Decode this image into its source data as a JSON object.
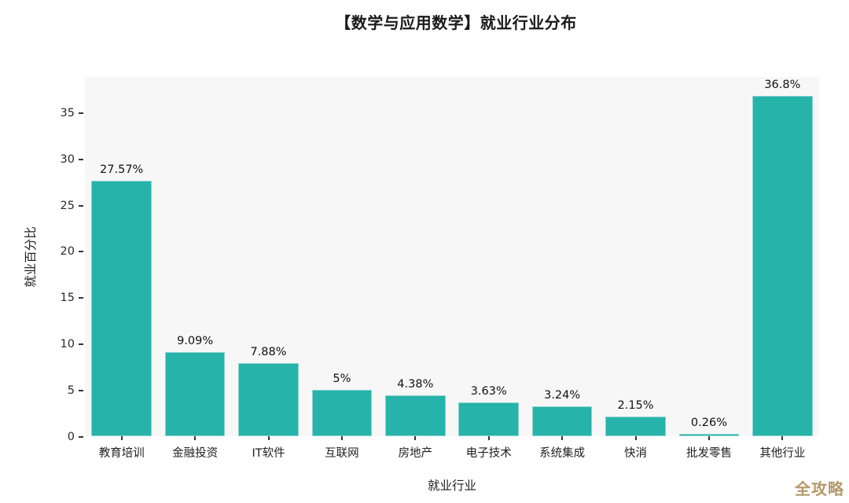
{
  "title": "【数学与应用数学】就业行业分布",
  "watermark_text": "全攻略",
  "colors": {
    "bar": "#26b3aa",
    "bar_border": "#8bd4ce",
    "plot_background": "#f7f7f7",
    "page_background": "#ffffff",
    "text": "#1f1f1f",
    "watermark": "#b5996b"
  },
  "chart_data": {
    "type": "bar",
    "title": "【数学与应用数学】就业行业分布",
    "xlabel": "就业行业",
    "ylabel": "就业百分比",
    "categories": [
      "教育培训",
      "金融投资",
      "IT软件",
      "互联网",
      "房地产",
      "电子技术",
      "系统集成",
      "快消",
      "批发零售",
      "其他行业"
    ],
    "values": [
      27.57,
      9.09,
      7.88,
      5,
      4.38,
      3.63,
      3.24,
      2.15,
      0.26,
      36.8
    ],
    "value_labels": [
      "27.57%",
      "9.09%",
      "7.88%",
      "5%",
      "4.38%",
      "3.63%",
      "3.24%",
      "2.15%",
      "0.26%",
      "36.8%"
    ],
    "yticks": [
      0,
      5,
      10,
      15,
      20,
      25,
      30,
      35
    ],
    "ylim": [
      0,
      38.8
    ],
    "grid": false,
    "legend": "none",
    "bar_color": "#26b3aa"
  }
}
